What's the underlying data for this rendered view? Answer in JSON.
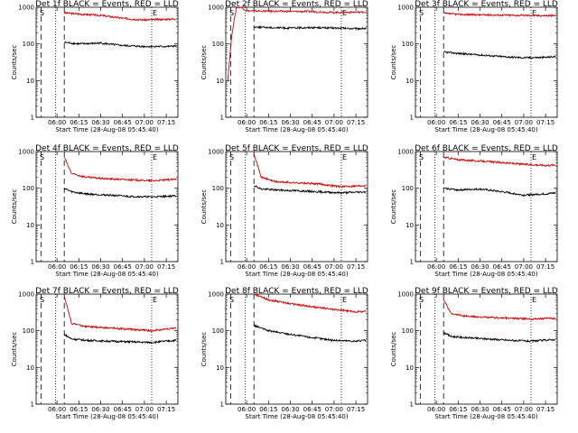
{
  "chart_data": [
    {
      "type": "line",
      "title": "Det 1f BLACK = Events, RED = LLD",
      "xlabel": "Start Time (28-Aug-08 05:45:40)",
      "ylabel": "Counts/sec",
      "yscale": "log",
      "ylim": [
        1,
        1000
      ],
      "xlim": [
        "05:45:40",
        "07:23:00"
      ],
      "xticks": [
        "06:00",
        "06:15",
        "06:30",
        "06:45",
        "07:00",
        "07:15"
      ],
      "yticks": [
        "1",
        "10",
        "100",
        "1000"
      ],
      "markers": [
        {
          "label": "S",
          "x": "05:47:30"
        },
        {
          "label": "E",
          "x": "07:05:00"
        }
      ],
      "vlines": [
        {
          "x": "05:49:00",
          "style": "dashed"
        },
        {
          "x": "05:59:00",
          "style": "dotted"
        },
        {
          "x": "06:05:00",
          "style": "dashed"
        },
        {
          "x": "07:05:00",
          "style": "dotted"
        }
      ],
      "series": [
        {
          "color": "#d40000",
          "start": "06:05:00",
          "end": "07:22:00",
          "x": [
            "06:05",
            "06:15",
            "06:30",
            "06:45",
            "07:00",
            "07:15",
            "07:22"
          ],
          "values": [
            700,
            650,
            600,
            500,
            450,
            470,
            480
          ]
        },
        {
          "color": "#000000",
          "start": "06:05:00",
          "end": "07:22:00",
          "x": [
            "06:05",
            "06:15",
            "06:30",
            "06:45",
            "07:00",
            "07:15",
            "07:22"
          ],
          "values": [
            110,
            100,
            105,
            90,
            85,
            85,
            88
          ]
        }
      ]
    },
    {
      "type": "line",
      "title": "Det 2f BLACK = Events, RED = LLD",
      "xlabel": "Start Time (28-Aug-08 05:45:40)",
      "ylabel": "Counts/sec",
      "yscale": "log",
      "ylim": [
        1,
        1000
      ],
      "xlim": [
        "05:45:40",
        "07:23:00"
      ],
      "xticks": [
        "06:00",
        "06:15",
        "06:30",
        "06:45",
        "07:00",
        "07:15"
      ],
      "yticks": [
        "1",
        "10",
        "100",
        "1000"
      ],
      "markers": [
        {
          "label": "S",
          "x": "05:47:30"
        },
        {
          "label": "E",
          "x": "07:05:00"
        }
      ],
      "vlines": [
        {
          "x": "05:49:00",
          "style": "dashed"
        },
        {
          "x": "05:59:00",
          "style": "dotted"
        },
        {
          "x": "06:05:00",
          "style": "dashed"
        },
        {
          "x": "07:05:00",
          "style": "dotted"
        }
      ],
      "series": [
        {
          "color": "#d40000",
          "start": "05:47:00",
          "end": "07:22:00",
          "x": [
            "05:47",
            "05:50",
            "05:53",
            "05:56",
            "06:00",
            "06:15",
            "06:45",
            "07:00",
            "07:22"
          ],
          "values": [
            10,
            200,
            1000,
            1000,
            800,
            780,
            760,
            720,
            740
          ]
        },
        {
          "color": "#000000",
          "start": "06:05:00",
          "end": "07:22:00",
          "x": [
            "06:05",
            "06:15",
            "06:30",
            "06:45",
            "07:00",
            "07:15",
            "07:22"
          ],
          "values": [
            290,
            280,
            270,
            280,
            270,
            260,
            265
          ]
        }
      ]
    },
    {
      "type": "line",
      "title": "Det 3f BLACK = Events, RED = LLD",
      "xlabel": "Start Time (28-Aug-08 05:45:40)",
      "ylabel": "Counts/sec",
      "yscale": "log",
      "ylim": [
        1,
        1000
      ],
      "xlim": [
        "05:45:40",
        "07:23:00"
      ],
      "xticks": [
        "06:00",
        "06:15",
        "06:30",
        "06:45",
        "07:00",
        "07:15"
      ],
      "yticks": [
        "1",
        "10",
        "100",
        "1000"
      ],
      "markers": [
        {
          "label": "S",
          "x": "05:47:30"
        },
        {
          "label": "E",
          "x": "07:05:00"
        }
      ],
      "vlines": [
        {
          "x": "05:49:00",
          "style": "dashed"
        },
        {
          "x": "05:59:00",
          "style": "dotted"
        },
        {
          "x": "06:05:00",
          "style": "dashed"
        },
        {
          "x": "07:05:00",
          "style": "dotted"
        }
      ],
      "series": [
        {
          "color": "#d40000",
          "start": "06:05:00",
          "end": "07:22:00",
          "x": [
            "06:05",
            "06:15",
            "06:30",
            "06:45",
            "07:00",
            "07:15",
            "07:22"
          ],
          "values": [
            680,
            640,
            620,
            610,
            600,
            590,
            595
          ]
        },
        {
          "color": "#000000",
          "start": "06:05:00",
          "end": "07:22:00",
          "x": [
            "06:05",
            "06:15",
            "06:30",
            "06:45",
            "07:00",
            "07:15",
            "07:22"
          ],
          "values": [
            60,
            55,
            50,
            45,
            42,
            43,
            45
          ]
        }
      ]
    },
    {
      "type": "line",
      "title": "Det 4f BLACK = Events, RED = LLD",
      "xlabel": "Start Time (28-Aug-08 05:45:40)",
      "ylabel": "Counts/sec",
      "yscale": "log",
      "ylim": [
        1,
        1000
      ],
      "xlim": [
        "05:45:40",
        "07:23:00"
      ],
      "xticks": [
        "06:00",
        "06:15",
        "06:30",
        "06:45",
        "07:00",
        "07:15"
      ],
      "yticks": [
        "1",
        "10",
        "100",
        "1000"
      ],
      "markers": [
        {
          "label": "S",
          "x": "05:47:30"
        },
        {
          "label": "E",
          "x": "07:05:00"
        }
      ],
      "vlines": [
        {
          "x": "05:49:00",
          "style": "dashed"
        },
        {
          "x": "05:59:00",
          "style": "dotted"
        },
        {
          "x": "06:05:00",
          "style": "dashed"
        },
        {
          "x": "07:05:00",
          "style": "dotted"
        }
      ],
      "series": [
        {
          "color": "#d40000",
          "start": "06:05:00",
          "end": "07:22:00",
          "x": [
            "06:05",
            "06:10",
            "06:20",
            "06:35",
            "06:50",
            "07:05",
            "07:22"
          ],
          "values": [
            700,
            250,
            200,
            180,
            170,
            160,
            175
          ]
        },
        {
          "color": "#000000",
          "start": "06:05:00",
          "end": "07:22:00",
          "x": [
            "06:05",
            "06:10",
            "06:20",
            "06:35",
            "06:50",
            "07:05",
            "07:22"
          ],
          "values": [
            100,
            80,
            70,
            65,
            60,
            58,
            62
          ]
        }
      ]
    },
    {
      "type": "line",
      "title": "Det 5f BLACK = Events, RED = LLD",
      "xlabel": "Start Time (28-Aug-08 05:45:40)",
      "ylabel": "Counts/sec",
      "yscale": "log",
      "ylim": [
        1,
        1000
      ],
      "xlim": [
        "05:45:40",
        "07:23:00"
      ],
      "xticks": [
        "06:00",
        "06:15",
        "06:30",
        "06:45",
        "07:00",
        "07:15"
      ],
      "yticks": [
        "1",
        "10",
        "100",
        "1000"
      ],
      "markers": [
        {
          "label": "S",
          "x": "05:47:30"
        },
        {
          "label": "E",
          "x": "07:05:00"
        }
      ],
      "vlines": [
        {
          "x": "05:49:00",
          "style": "dashed"
        },
        {
          "x": "05:59:00",
          "style": "dotted"
        },
        {
          "x": "06:05:00",
          "style": "dashed"
        },
        {
          "x": "07:05:00",
          "style": "dotted"
        }
      ],
      "series": [
        {
          "color": "#d40000",
          "start": "06:05:00",
          "end": "07:22:00",
          "x": [
            "06:05",
            "06:10",
            "06:20",
            "06:35",
            "06:50",
            "07:05",
            "07:22"
          ],
          "values": [
            900,
            200,
            150,
            140,
            130,
            110,
            120
          ]
        },
        {
          "color": "#000000",
          "start": "06:05:00",
          "end": "07:22:00",
          "x": [
            "06:05",
            "06:10",
            "06:20",
            "06:35",
            "06:50",
            "07:05",
            "07:22"
          ],
          "values": [
            120,
            95,
            90,
            85,
            80,
            75,
            80
          ]
        }
      ]
    },
    {
      "type": "line",
      "title": "Det 6f BLACK = Events, RED = LLD",
      "xlabel": "Start Time (28-Aug-08 05:45:40)",
      "ylabel": "Counts/sec",
      "yscale": "log",
      "ylim": [
        1,
        1000
      ],
      "xlim": [
        "05:45:40",
        "07:23:00"
      ],
      "xticks": [
        "06:00",
        "06:15",
        "06:30",
        "06:45",
        "07:00",
        "07:15"
      ],
      "yticks": [
        "1",
        "10",
        "100",
        "1000"
      ],
      "markers": [
        {
          "label": "S",
          "x": "05:47:30"
        },
        {
          "label": "E",
          "x": "07:05:00"
        }
      ],
      "vlines": [
        {
          "x": "05:49:00",
          "style": "dashed"
        },
        {
          "x": "05:59:00",
          "style": "dotted"
        },
        {
          "x": "06:05:00",
          "style": "dashed"
        },
        {
          "x": "07:05:00",
          "style": "dotted"
        }
      ],
      "series": [
        {
          "color": "#d40000",
          "start": "06:05:00",
          "end": "07:22:00",
          "x": [
            "06:05",
            "06:15",
            "06:30",
            "06:45",
            "07:00",
            "07:15",
            "07:22"
          ],
          "values": [
            700,
            600,
            550,
            500,
            450,
            420,
            430
          ]
        },
        {
          "color": "#000000",
          "start": "06:05:00",
          "end": "07:22:00",
          "x": [
            "06:05",
            "06:15",
            "06:30",
            "06:45",
            "07:00",
            "07:15",
            "07:22"
          ],
          "values": [
            100,
            90,
            95,
            80,
            65,
            70,
            75
          ]
        }
      ]
    },
    {
      "type": "line",
      "title": "Det 7f BLACK = Events, RED = LLD",
      "xlabel": "Start Time (28-Aug-08 05:45:40)",
      "ylabel": "Counts/sec",
      "yscale": "log",
      "ylim": [
        1,
        1000
      ],
      "xlim": [
        "05:45:40",
        "07:23:00"
      ],
      "xticks": [
        "06:00",
        "06:15",
        "06:30",
        "06:45",
        "07:00",
        "07:15"
      ],
      "yticks": [
        "1",
        "10",
        "100",
        "1000"
      ],
      "markers": [
        {
          "label": "S",
          "x": "05:47:30"
        },
        {
          "label": "E",
          "x": "07:05:00"
        }
      ],
      "vlines": [
        {
          "x": "05:49:00",
          "style": "dashed"
        },
        {
          "x": "05:59:00",
          "style": "dotted"
        },
        {
          "x": "06:05:00",
          "style": "dashed"
        },
        {
          "x": "07:05:00",
          "style": "dotted"
        }
      ],
      "series": [
        {
          "color": "#d40000",
          "start": "06:05:00",
          "end": "07:22:00",
          "x": [
            "06:05",
            "06:10",
            "06:20",
            "06:35",
            "06:50",
            "07:05",
            "07:22"
          ],
          "values": [
            900,
            160,
            130,
            120,
            110,
            100,
            120
          ]
        },
        {
          "color": "#000000",
          "start": "06:05:00",
          "end": "07:22:00",
          "x": [
            "06:05",
            "06:10",
            "06:20",
            "06:35",
            "06:50",
            "07:05",
            "07:22"
          ],
          "values": [
            80,
            60,
            55,
            52,
            50,
            48,
            55
          ]
        }
      ]
    },
    {
      "type": "line",
      "title": "Det 8f BLACK = Events, RED = LLD",
      "xlabel": "Start Time (28-Aug-08 05:45:40)",
      "ylabel": "Counts/sec",
      "yscale": "log",
      "ylim": [
        1,
        1000
      ],
      "xlim": [
        "05:45:40",
        "07:23:00"
      ],
      "xticks": [
        "06:00",
        "06:15",
        "06:30",
        "06:45",
        "07:00",
        "07:15"
      ],
      "yticks": [
        "1",
        "10",
        "100",
        "1000"
      ],
      "markers": [
        {
          "label": "S",
          "x": "05:47:30"
        },
        {
          "label": "E",
          "x": "07:05:00"
        }
      ],
      "vlines": [
        {
          "x": "05:49:00",
          "style": "dashed"
        },
        {
          "x": "05:59:00",
          "style": "dotted"
        },
        {
          "x": "06:05:00",
          "style": "dashed"
        },
        {
          "x": "07:05:00",
          "style": "dotted"
        }
      ],
      "series": [
        {
          "color": "#d40000",
          "start": "06:05:00",
          "end": "07:22:00",
          "x": [
            "06:05",
            "06:15",
            "06:30",
            "06:45",
            "07:00",
            "07:15",
            "07:22"
          ],
          "values": [
            1000,
            700,
            550,
            450,
            380,
            330,
            340
          ]
        },
        {
          "color": "#000000",
          "start": "06:05:00",
          "end": "07:22:00",
          "x": [
            "06:05",
            "06:15",
            "06:30",
            "06:45",
            "07:00",
            "07:15",
            "07:22"
          ],
          "values": [
            140,
            100,
            80,
            65,
            55,
            52,
            55
          ]
        }
      ]
    },
    {
      "type": "line",
      "title": "Det 9f BLACK = Events, RED = LLD",
      "xlabel": "Start Time (28-Aug-08 05:45:40)",
      "ylabel": "Counts/sec",
      "yscale": "log",
      "ylim": [
        1,
        1000
      ],
      "xlim": [
        "05:45:40",
        "07:23:00"
      ],
      "xticks": [
        "06:00",
        "06:15",
        "06:30",
        "06:45",
        "07:00",
        "07:15"
      ],
      "yticks": [
        "1",
        "10",
        "100",
        "1000"
      ],
      "markers": [
        {
          "label": "S",
          "x": "05:47:30"
        },
        {
          "label": "E",
          "x": "07:05:00"
        }
      ],
      "vlines": [
        {
          "x": "05:49:00",
          "style": "dashed"
        },
        {
          "x": "05:59:00",
          "style": "dotted"
        },
        {
          "x": "06:05:00",
          "style": "dashed"
        },
        {
          "x": "07:05:00",
          "style": "dotted"
        }
      ],
      "series": [
        {
          "color": "#d40000",
          "start": "06:05:00",
          "end": "07:22:00",
          "x": [
            "06:05",
            "06:10",
            "06:20",
            "06:35",
            "06:50",
            "07:05",
            "07:22"
          ],
          "values": [
            700,
            300,
            250,
            230,
            220,
            210,
            220
          ]
        },
        {
          "color": "#000000",
          "start": "06:05:00",
          "end": "07:22:00",
          "x": [
            "06:05",
            "06:10",
            "06:20",
            "06:35",
            "06:50",
            "07:05",
            "07:22"
          ],
          "values": [
            90,
            70,
            65,
            60,
            55,
            52,
            58
          ]
        }
      ]
    }
  ]
}
